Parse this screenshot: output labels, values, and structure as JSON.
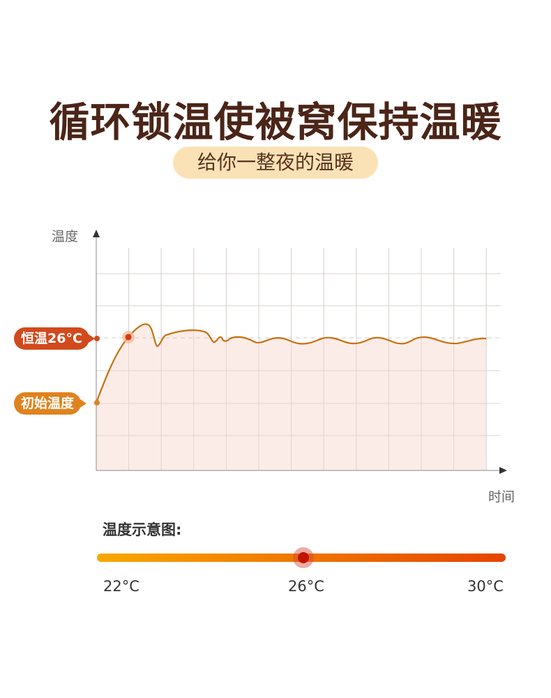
{
  "header": {
    "title": "循环锁温使被窝保持温暖",
    "subtitle": "给你一整夜的温暖"
  },
  "chart_data": {
    "type": "line",
    "xlabel": "时间",
    "ylabel": "温度",
    "annotations": [
      "恒温26°C",
      "初始温度"
    ],
    "grid": true,
    "colors": {
      "line": "#c87010",
      "fill": "#fbe9e4",
      "hold": "#d24a1c",
      "initial": "#e0821e"
    }
  },
  "legend": {
    "title": "温度示意图:",
    "min": "22°C",
    "mid": "26°C",
    "max": "30°C",
    "value_celsius": 26,
    "gradient": [
      "#f9a800",
      "#e64400"
    ]
  }
}
